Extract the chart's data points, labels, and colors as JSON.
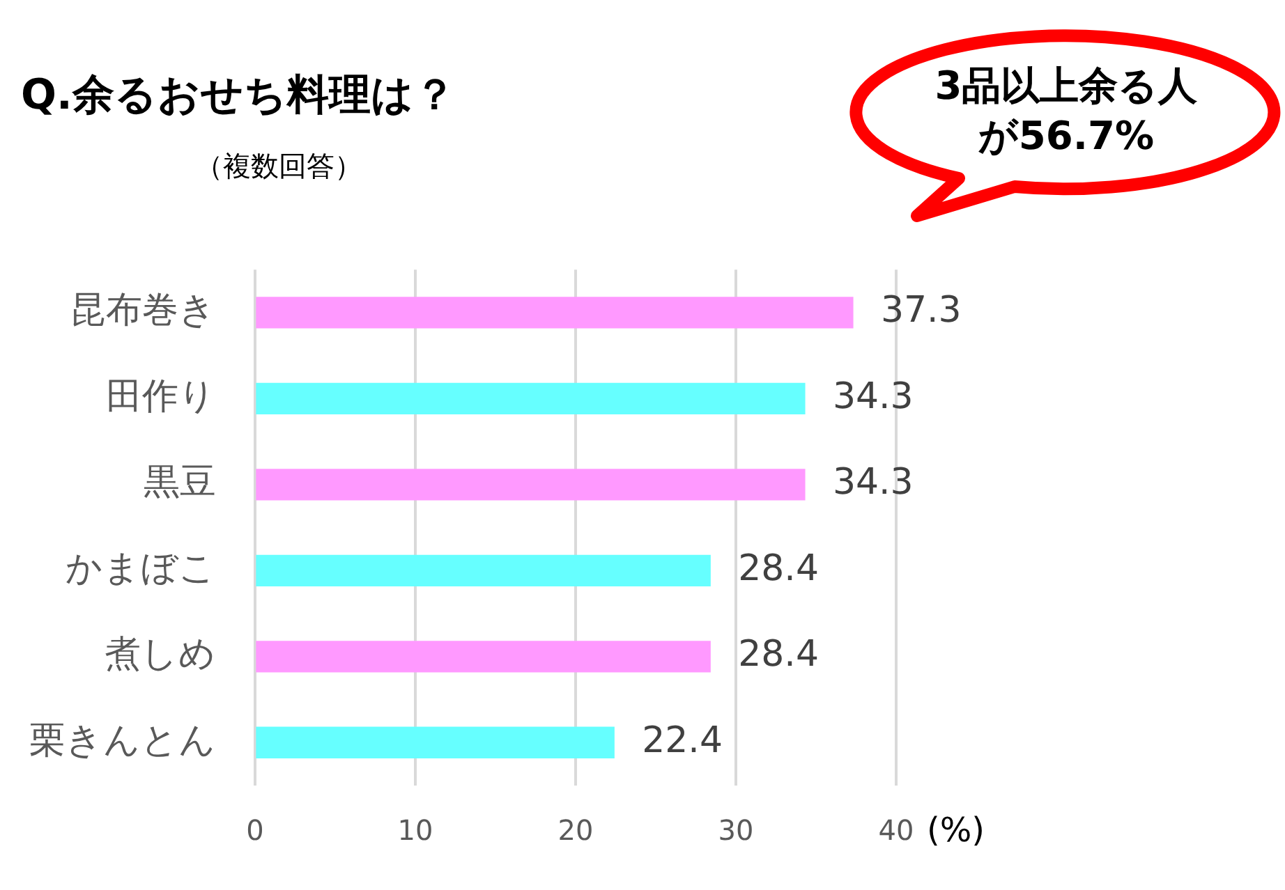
{
  "chart_data": {
    "type": "bar",
    "orientation": "horizontal",
    "title": "Q.余るおせち料理は？",
    "subtitle": "（複数回答）",
    "xlabel": "(%)",
    "categories": [
      "昆布巻き",
      "田作り",
      "黒豆",
      "かまぼこ",
      "煮しめ",
      "栗きんとん"
    ],
    "values": [
      37.3,
      34.3,
      34.3,
      28.4,
      28.4,
      22.4
    ],
    "colors": [
      "#ff99ff",
      "#66ffff",
      "#ff99ff",
      "#66ffff",
      "#ff99ff",
      "#66ffff"
    ],
    "xlim": [
      0,
      40
    ],
    "xticks": [
      0,
      10,
      20,
      30,
      40
    ],
    "grid": "x",
    "legend": false,
    "data_labels": true,
    "annotations": [
      "3品以上余る人が56.7%"
    ]
  }
}
